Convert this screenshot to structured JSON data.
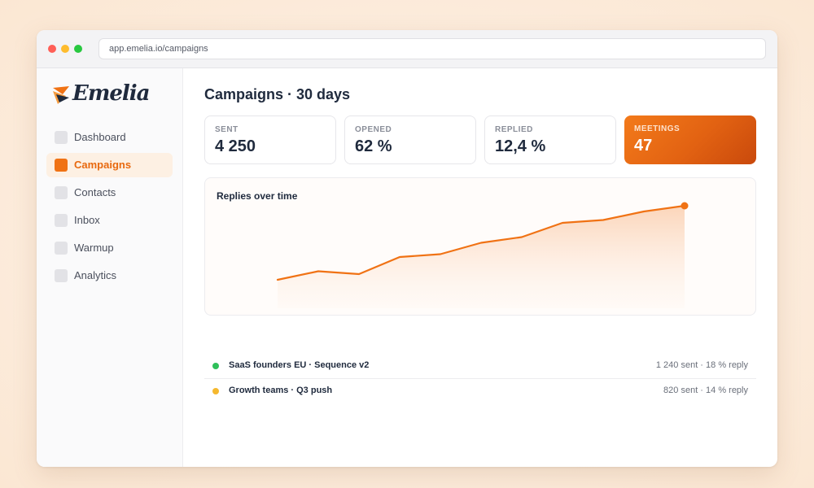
{
  "browser": {
    "url": "app.emelia.io/campaigns"
  },
  "brand": {
    "name": "Emelia",
    "accent": "#f07214"
  },
  "sidebar": {
    "items": [
      {
        "label": "Dashboard",
        "active": false
      },
      {
        "label": "Campaigns",
        "active": true
      },
      {
        "label": "Contacts",
        "active": false
      },
      {
        "label": "Inbox",
        "active": false
      },
      {
        "label": "Warmup",
        "active": false
      },
      {
        "label": "Analytics",
        "active": false
      }
    ]
  },
  "main": {
    "title": "Campaigns · 30 days",
    "stats": [
      {
        "label": "SENT",
        "value": "4 250"
      },
      {
        "label": "OPENED",
        "value": "62 %"
      },
      {
        "label": "REPLIED",
        "value": "12,4 %"
      },
      {
        "label": "MEETINGS",
        "value": "47"
      }
    ]
  },
  "chart_data": {
    "type": "area",
    "title": "Replies over time",
    "xlabel": "",
    "ylabel": "",
    "grid": false,
    "legend": "none",
    "x": [
      1,
      2,
      3,
      4,
      5,
      6,
      7,
      8,
      9,
      10,
      11
    ],
    "series": [
      {
        "values": [
          10,
          13,
          12,
          18,
          19,
          23,
          25,
          30,
          31,
          34,
          36
        ],
        "color": "#f07214"
      }
    ],
    "ylim": [
      0,
      40
    ]
  },
  "campaigns": [
    {
      "name": "SaaS founders EU · Sequence v2",
      "meta": "1 240 sent · 18 % reply",
      "status_color": "#2fc05a"
    },
    {
      "name": "Growth teams · Q3 push",
      "meta": "820 sent · 14 % reply",
      "status_color": "#f5b82e"
    }
  ]
}
